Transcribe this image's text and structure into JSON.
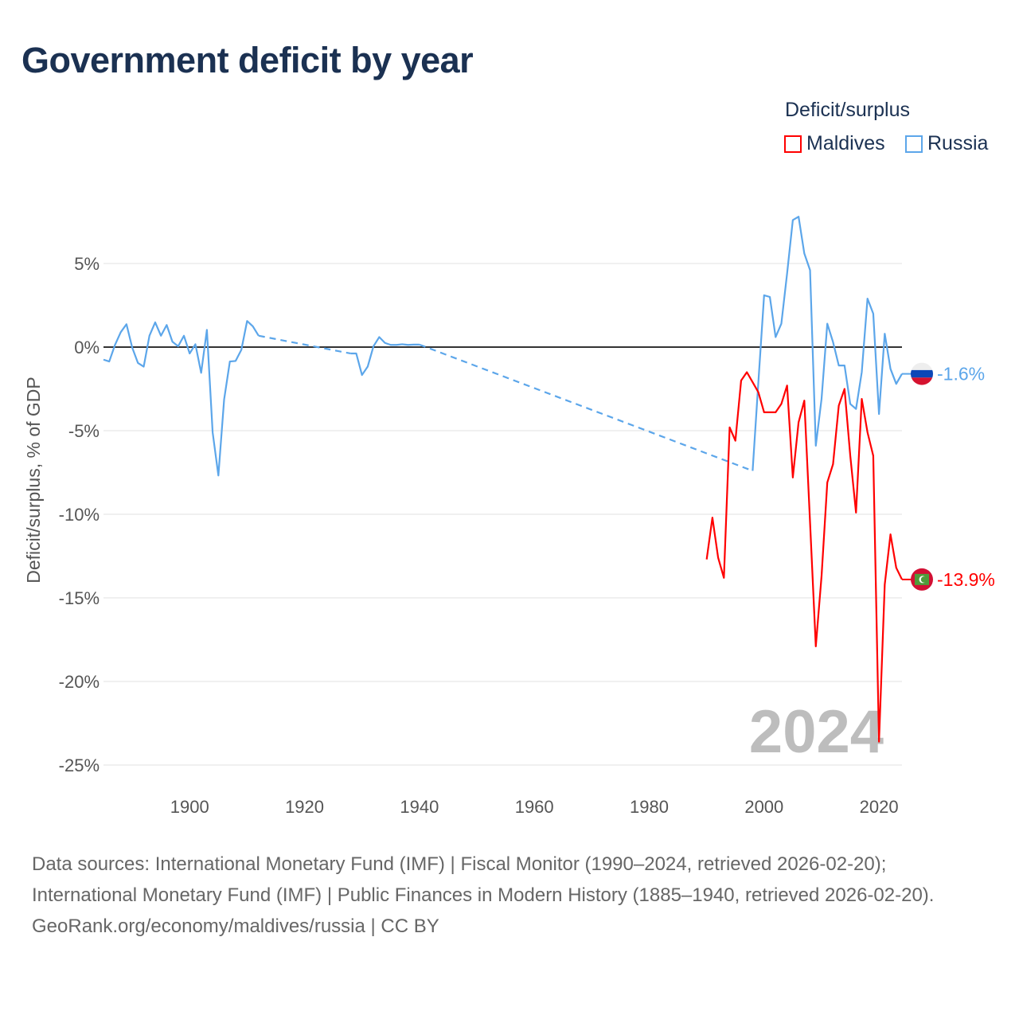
{
  "title": "Government deficit by year",
  "legend": {
    "title": "Deficit/surplus",
    "items": [
      {
        "name": "Maldives",
        "color": "#ff0000"
      },
      {
        "name": "Russia",
        "color": "#5ca6ea"
      }
    ]
  },
  "chart_data": {
    "type": "line",
    "title": "Government deficit by year",
    "xlabel": "",
    "ylabel": "Deficit/surplus, % of GDP",
    "xlim": [
      1885,
      2024
    ],
    "ylim": [
      -25,
      8
    ],
    "x_ticks": [
      1900,
      1920,
      1940,
      1960,
      1980,
      2000,
      2020
    ],
    "x_tick_labels": [
      "1900",
      "1920",
      "1940",
      "1960",
      "1980",
      "2000",
      "2020"
    ],
    "y_ticks": [
      5,
      0,
      -5,
      -10,
      -15,
      -20,
      -25
    ],
    "y_tick_labels": [
      "5%",
      "0%",
      "-5%",
      "-10%",
      "-15%",
      "-20%",
      "-25%"
    ],
    "year_label": "2024",
    "series": [
      {
        "name": "Maldives",
        "color": "#ff0000",
        "end_label": "-13.9%",
        "x_start": 1990,
        "values": [
          -12.7,
          -10.2,
          -12.6,
          -13.8,
          -4.8,
          -5.6,
          -2.0,
          -1.5,
          -2.1,
          -2.7,
          -3.9,
          -3.9,
          -3.9,
          -3.4,
          -2.3,
          -7.8,
          -4.5,
          -3.2,
          -10.5,
          -17.9,
          -13.7,
          -8.1,
          -7.0,
          -3.5,
          -2.5,
          -6.5,
          -9.9,
          -3.1,
          -5.1,
          -6.5,
          -23.6,
          -14.2,
          -11.2,
          -13.2,
          -13.9
        ]
      },
      {
        "name": "Russia",
        "color": "#5ca6ea",
        "end_label": "-1.6%",
        "segments": [
          {
            "x_start": 1885,
            "values": [
              -0.75,
              -0.86,
              0.13,
              0.89,
              1.37,
              -0.03,
              -0.95,
              -1.17,
              0.68,
              1.48,
              0.68,
              1.32,
              0.32,
              0.05,
              0.68,
              -0.38,
              0.17,
              -1.54,
              1.03,
              -5.1,
              -7.68,
              -3.13,
              -0.86,
              -0.83,
              -0.16,
              1.56,
              1.24,
              0.68
            ]
          },
          {
            "x_start": 1928,
            "values": [
              -0.38,
              -0.38,
              -1.67,
              -1.16,
              0.05,
              0.6,
              0.25,
              0.13,
              0.13,
              0.17,
              0.13,
              0.15,
              0.15
            ]
          },
          {
            "x_start": 1998,
            "values": [
              -7.4,
              -2.1,
              3.1,
              3.0,
              0.6,
              1.4,
              4.4,
              7.6,
              7.8,
              5.6,
              4.6,
              -5.9,
              -3.1,
              1.4,
              0.3,
              -1.1,
              -1.1,
              -3.4,
              -3.7,
              -1.5,
              2.9,
              2.0,
              -4.0,
              0.8,
              -1.3,
              -2.2,
              -1.6
            ]
          }
        ]
      }
    ]
  },
  "footer": {
    "sources": "Data sources: International Monetary Fund (IMF) | Fiscal Monitor (1990–2024, retrieved 2026-02-20); International Monetary Fund (IMF) | Public Finances in Modern History (1885–1940, retrieved 2026-02-20).",
    "credit": "GeoRank.org/economy/maldives/russia | CC BY"
  }
}
